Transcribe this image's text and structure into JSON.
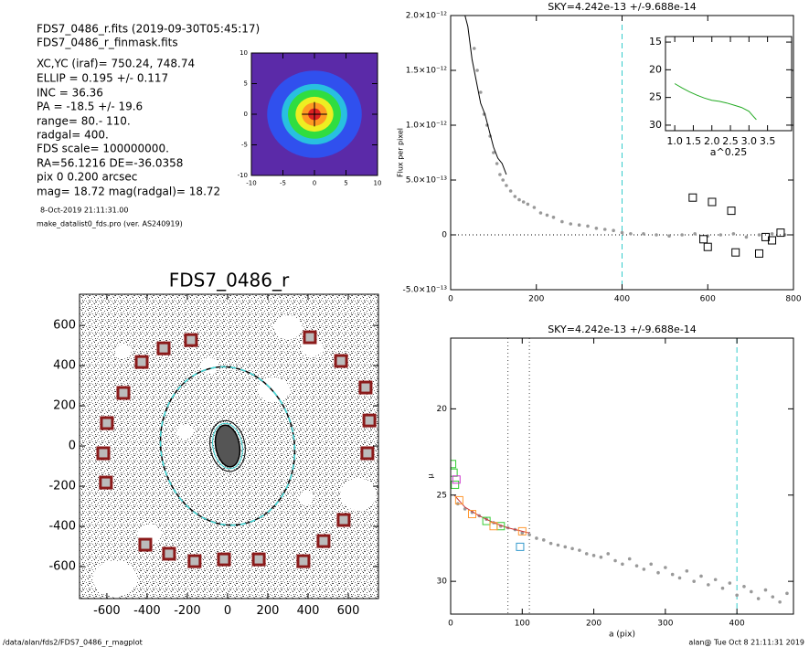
{
  "info": {
    "lines": [
      "FDS7_0486_r.fits   (2019-09-30T05:45:17)",
      "FDS7_0486_r_finmask.fits",
      "XC,YC (iraf)=   750.24, 748.74",
      "ELLIP = 0.195 +/-  0.117",
      "INC   = 36.36",
      "PA    = -18.5 +/-  19.6",
      "range=   80.-  110.",
      "radgal=  400.",
      "FDS scale=  100000000.",
      "RA=56.1216   DE=-36.0358",
      "pix 0 0.200 arcsec",
      "mag=  18.72  mag(radgal)=  18.72"
    ],
    "date": "8-Oct-2019 21:11:31.00",
    "program": "make_datalist0_fds.pro (ver. AS240919)"
  },
  "footer": {
    "left": "/data/alan/fds2/FDS7_0486_r_magplot",
    "right": "alan@  Tue Oct  8 21:11:31 2019"
  },
  "chart_data": [
    {
      "type": "image",
      "xlim": [
        -10,
        10
      ],
      "ylim": [
        -10,
        10
      ],
      "xticks": [
        -10,
        -5,
        0,
        5,
        10
      ],
      "yticks": [
        -10,
        -5,
        0,
        5,
        10
      ]
    },
    {
      "type": "scatter",
      "title": "SKY=4.242e-13 +/-9.688e-14",
      "ylabel": "Flux per pixel",
      "xlim": [
        0,
        800
      ],
      "xticks": [
        0,
        200,
        400,
        600,
        800
      ],
      "ylim": [
        -5e-13,
        2e-12
      ],
      "yticks": [
        {
          "value": -5e-13,
          "label": "-5.0×10⁻¹³"
        },
        0,
        {
          "value": 5e-13,
          "label": "5.0×10⁻¹³"
        },
        {
          "value": 1e-12,
          "label": "1.0×10⁻¹²"
        },
        {
          "value": 1.5e-12,
          "label": "1.5×10⁻¹²"
        },
        {
          "value": 2e-12,
          "label": "2.0×10⁻¹²"
        }
      ],
      "vlines": [
        {
          "value": 400,
          "color": "#33cccc",
          "style": "dashed"
        }
      ],
      "hlines": [
        {
          "value": 0,
          "color": "#000000",
          "style": "dotted"
        }
      ],
      "series": [
        {
          "color": "#999999",
          "marker": "circle",
          "x": [
            55,
            62,
            70,
            78,
            85,
            92,
            100,
            108,
            115,
            122,
            130,
            140,
            150,
            160,
            170,
            180,
            195,
            210,
            225,
            240,
            260,
            280,
            300,
            320,
            340,
            360,
            380,
            400,
            420,
            450,
            480,
            510,
            540,
            570,
            600,
            630,
            660,
            690,
            720,
            750,
            780
          ],
          "values": [
            1.7e-12,
            1.5e-12,
            1.3e-12,
            1.1e-12,
            1e-12,
            9e-13,
            7.5e-13,
            6.5e-13,
            5.5e-13,
            5e-13,
            4.5e-13,
            4e-13,
            3.5e-13,
            3.2e-13,
            3e-13,
            2.8e-13,
            2.5e-13,
            2e-13,
            1.8e-13,
            1.6e-13,
            1.2e-13,
            1e-13,
            9e-14,
            8e-14,
            6e-14,
            5e-14,
            4e-14,
            2e-14,
            1e-14,
            1e-14,
            0,
            -1e-14,
            0,
            1e-14,
            -1e-14,
            0,
            1e-14,
            -2e-14,
            0,
            1e-14,
            0
          ]
        },
        {
          "color": "#000000",
          "marker": "line",
          "x": [
            30,
            40,
            50,
            60,
            70,
            80,
            90,
            100,
            110,
            120,
            130
          ],
          "values": [
            2.05e-12,
            1.9e-12,
            1.6e-12,
            1.4e-12,
            1.2e-12,
            1.1e-12,
            9.5e-13,
            8e-13,
            7e-13,
            6.5e-13,
            5.5e-13
          ]
        },
        {
          "color": "#000000",
          "marker": "square",
          "x": [
            565,
            610,
            655,
            590,
            600,
            665,
            720,
            735,
            750,
            770
          ],
          "values": [
            3.4e-13,
            3e-13,
            2.2e-13,
            -4e-14,
            -1.1e-13,
            -1.6e-13,
            -1.7e-13,
            -2e-14,
            -5e-14,
            2e-14
          ]
        }
      ],
      "inset": {
        "type": "line",
        "xlabel": "a^0.25",
        "xlim": [
          0.75,
          4.15
        ],
        "xticks": [
          {
            "value": 1,
            "label": "1.0"
          },
          {
            "value": 1.5,
            "label": "1.5"
          },
          {
            "value": 2,
            "label": "2.0"
          },
          {
            "value": 2.5,
            "label": "2.5"
          },
          {
            "value": 3,
            "label": "3.0"
          },
          {
            "value": 3.5,
            "label": "3.5"
          }
        ],
        "ylim": [
          31,
          14
        ],
        "yticks": [
          15,
          20,
          25,
          30
        ],
        "series": [
          {
            "color": "#22aa22",
            "marker": "line",
            "x": [
              1.0,
              1.2,
              1.4,
              1.6,
              1.8,
              2.0,
              2.2,
              2.4,
              2.6,
              2.8,
              3.0,
              3.1,
              3.2
            ],
            "values": [
              22.5,
              23.3,
              24,
              24.6,
              25.1,
              25.5,
              25.7,
              26,
              26.4,
              26.8,
              27.5,
              28.3,
              29
            ]
          }
        ]
      }
    },
    {
      "type": "image",
      "title": "FDS7_0486_r",
      "xlim": [
        -736,
        750
      ],
      "xticks": [
        -600,
        -400,
        -200,
        0,
        200,
        400,
        600
      ],
      "ylim": [
        -759,
        755
      ],
      "yticks": [
        -600,
        -400,
        -200,
        0,
        200,
        400,
        600
      ],
      "series": [
        {
          "color": "#8b1a1a",
          "marker": "bigsquare",
          "x": [
            409,
            564,
            686,
            705,
            695,
            577,
            477,
            377,
            155,
            -18,
            -164,
            -291,
            -409,
            -605,
            -618,
            -600,
            -518,
            -427,
            -318,
            -182
          ],
          "values": [
            541,
            423,
            291,
            127,
            -36,
            -368,
            -473,
            -573,
            -564,
            -564,
            -573,
            -536,
            -491,
            -182,
            -36,
            114,
            264,
            418,
            486,
            527
          ]
        }
      ]
    },
    {
      "type": "scatter",
      "title": "SKY=4.242e-13 +/-9.688e-14",
      "xlabel": "a (pix)",
      "ylabel": "μ",
      "xlim": [
        0,
        479
      ],
      "xticks": [
        0,
        100,
        200,
        300,
        400
      ],
      "ylim": [
        31.9,
        15.9
      ],
      "yticks": [
        20,
        25,
        30
      ],
      "vlines": [
        {
          "value": 80,
          "color": "#444444",
          "style": "dotted"
        },
        {
          "value": 110,
          "color": "#444444",
          "style": "dotted"
        },
        {
          "value": 400,
          "color": "#33cccc",
          "style": "dashed"
        }
      ],
      "series": [
        {
          "color": "#999999",
          "marker": "circle",
          "x": [
            10,
            20,
            30,
            40,
            50,
            60,
            70,
            80,
            90,
            100,
            110,
            120,
            130,
            140,
            150,
            160,
            170,
            180,
            190,
            200,
            210,
            220,
            230,
            240,
            250,
            260,
            270,
            280,
            290,
            300,
            310,
            320,
            330,
            340,
            350,
            360,
            370,
            380,
            390,
            400,
            410,
            420,
            430,
            440,
            450,
            460,
            470
          ],
          "values": [
            25.5,
            25.8,
            26.0,
            26.2,
            26.4,
            26.6,
            26.8,
            26.9,
            27.0,
            27.2,
            27.3,
            27.5,
            27.6,
            27.8,
            27.9,
            28.0,
            28.1,
            28.2,
            28.4,
            28.5,
            28.6,
            28.4,
            28.8,
            29.0,
            28.7,
            29.1,
            29.3,
            29.0,
            29.5,
            29.2,
            29.6,
            29.8,
            29.4,
            30.0,
            29.7,
            30.2,
            29.9,
            30.4,
            30.1,
            30.8,
            30.3,
            30.6,
            31.0,
            30.5,
            30.9,
            31.2,
            30.7
          ]
        },
        {
          "color": "#cc3333",
          "marker": "line",
          "x": [
            5,
            20,
            40,
            60,
            80,
            100,
            110
          ],
          "values": [
            25.0,
            25.7,
            26.2,
            26.6,
            26.9,
            27.1,
            27.2
          ]
        },
        {
          "color": "#33cc33",
          "marker": "square",
          "x": [
            2,
            4,
            6,
            50,
            70
          ],
          "values": [
            23.2,
            23.7,
            24.4,
            26.5,
            26.8
          ]
        },
        {
          "color": "#cc33cc",
          "marker": "square",
          "x": [
            8
          ],
          "values": [
            24.1
          ]
        },
        {
          "color": "#ff9933",
          "marker": "square",
          "x": [
            12,
            30,
            60,
            100
          ],
          "values": [
            25.3,
            26.1,
            26.8,
            27.1
          ]
        },
        {
          "color": "#3399cc",
          "marker": "square",
          "x": [
            97
          ],
          "values": [
            28.0
          ]
        }
      ]
    }
  ]
}
